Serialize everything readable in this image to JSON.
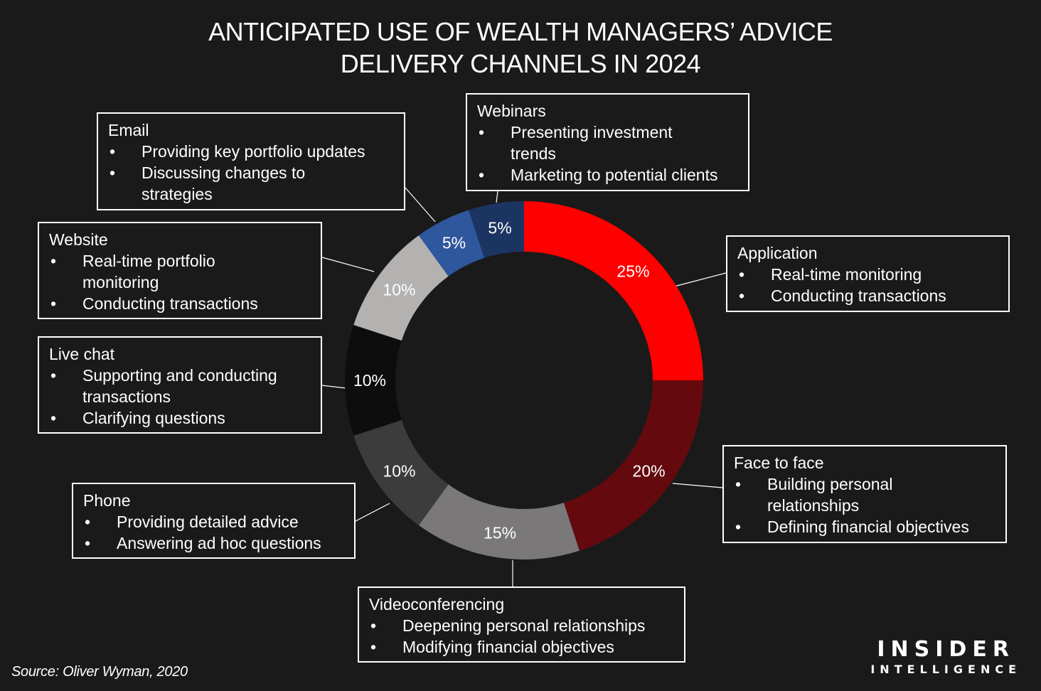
{
  "title_lines": [
    "ANTICIPATED USE OF WEALTH MANAGERS’ ADVICE",
    "DELIVERY CHANNELS IN 2024"
  ],
  "source": "Source: Oliver Wyman, 2020",
  "brand": {
    "top": "INSIDER",
    "bottom": "INTELLIGENCE"
  },
  "chart_data": {
    "type": "pie",
    "donut": true,
    "title": "ANTICIPATED USE OF WEALTH MANAGERS’ ADVICE DELIVERY CHANNELS IN 2024",
    "unit": "%",
    "slices": [
      {
        "name": "Application",
        "value": 25,
        "label": "25%",
        "color": "#ff0000",
        "label_color": "#ffffff",
        "uses": [
          "Real-time monitoring",
          "Conducting transactions"
        ]
      },
      {
        "name": "Face to face",
        "value": 20,
        "label": "20%",
        "color": "#640a0e",
        "label_color": "#ffffff",
        "uses": [
          "Building personal relationships",
          "Defining financial objectives"
        ]
      },
      {
        "name": "Videoconferencing",
        "value": 15,
        "label": "15%",
        "color": "#7a7878",
        "label_color": "#ffffff",
        "uses": [
          "Deepening personal relationships",
          "Modifying financial objectives"
        ]
      },
      {
        "name": "Phone",
        "value": 10,
        "label": "10%",
        "color": "#3d3c3c",
        "label_color": "#ffffff",
        "uses": [
          "Providing detailed advice",
          "Answering ad hoc questions"
        ]
      },
      {
        "name": "Live chat",
        "value": 10,
        "label": "10%",
        "color": "#0d0d0d",
        "label_color": "#ffffff",
        "uses": [
          "Supporting and conducting transactions",
          "Clarifying questions"
        ]
      },
      {
        "name": "Website",
        "value": 10,
        "label": "10%",
        "color": "#b4b1b1",
        "label_color": "#ffffff",
        "uses": [
          "Real-time portfolio monitoring",
          "Conducting transactions"
        ]
      },
      {
        "name": "Email",
        "value": 5,
        "label": "5%",
        "color": "#2f579d",
        "label_color": "#ffffff",
        "uses": [
          "Providing key portfolio updates",
          "Discussing changes to strategies"
        ]
      },
      {
        "name": "Webinars",
        "value": 5,
        "label": "5%",
        "color": "#1c3461",
        "label_color": "#ffffff",
        "uses": [
          "Presenting investment trends",
          "Marketing to potential clients"
        ]
      }
    ]
  }
}
